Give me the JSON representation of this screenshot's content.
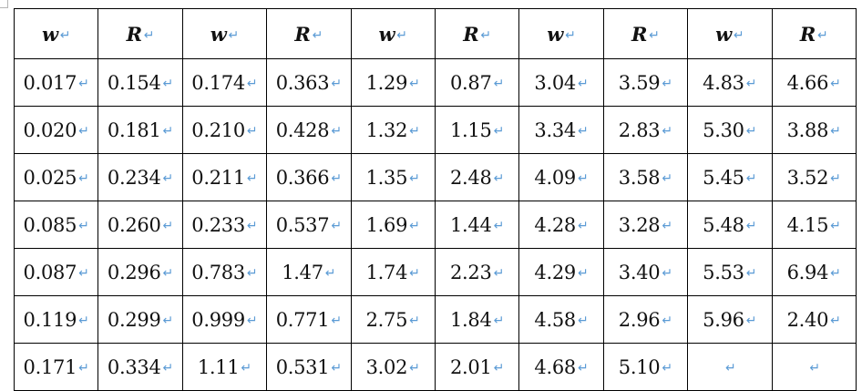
{
  "paragraph_mark": "↵",
  "table": {
    "headers": [
      "w",
      "R",
      "w",
      "R",
      "w",
      "R",
      "w",
      "R",
      "w",
      "R"
    ],
    "rows": [
      [
        "0.017",
        "0.154",
        "0.174",
        "0.363",
        "1.29",
        "0.87",
        "3.04",
        "3.59",
        "4.83",
        "4.66"
      ],
      [
        "0.020",
        "0.181",
        "0.210",
        "0.428",
        "1.32",
        "1.15",
        "3.34",
        "2.83",
        "5.30",
        "3.88"
      ],
      [
        "0.025",
        "0.234",
        "0.211",
        "0.366",
        "1.35",
        "2.48",
        "4.09",
        "3.58",
        "5.45",
        "3.52"
      ],
      [
        "0.085",
        "0.260",
        "0.233",
        "0.537",
        "1.69",
        "1.44",
        "4.28",
        "3.28",
        "5.48",
        "4.15"
      ],
      [
        "0.087",
        "0.296",
        "0.783",
        "1.47",
        "1.74",
        "2.23",
        "4.29",
        "3.40",
        "5.53",
        "6.94"
      ],
      [
        "0.119",
        "0.299",
        "0.999",
        "0.771",
        "2.75",
        "1.84",
        "4.58",
        "2.96",
        "5.96",
        "2.40"
      ],
      [
        "0.171",
        "0.334",
        "1.11",
        "0.531",
        "3.02",
        "2.01",
        "4.68",
        "5.10",
        "",
        ""
      ]
    ]
  }
}
